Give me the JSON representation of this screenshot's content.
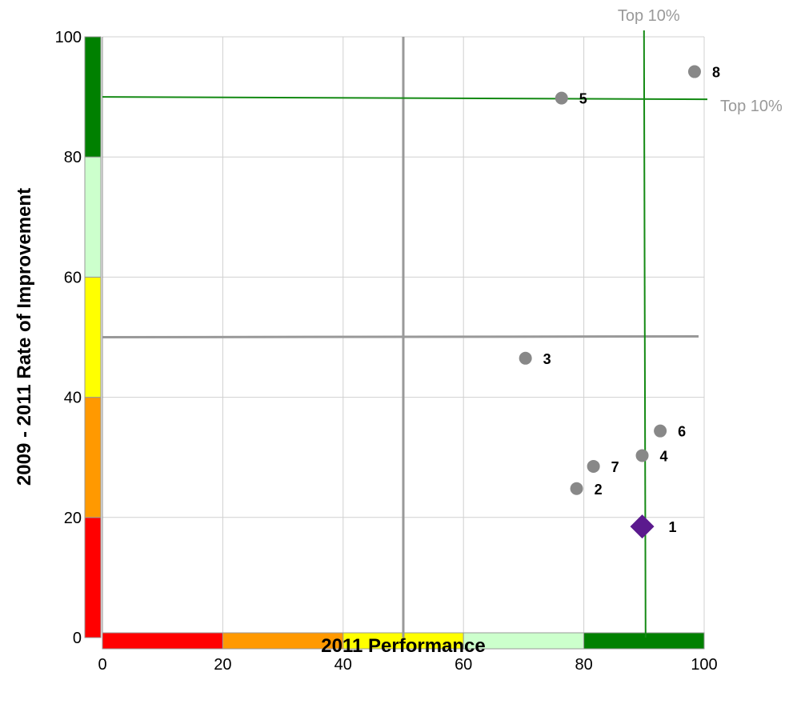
{
  "chart_data": {
    "type": "scatter",
    "xlabel": "2011 Performance",
    "ylabel": "2009 - 2011 Rate of Improvement",
    "xlim": [
      0,
      100
    ],
    "ylim": [
      0,
      100
    ],
    "x_ticks": [
      "0",
      "20",
      "40",
      "60",
      "80",
      "100"
    ],
    "y_ticks": [
      "0",
      "20",
      "40",
      "60",
      "80",
      "100"
    ],
    "grid": true,
    "points": [
      {
        "label": "1",
        "x": 89.7,
        "y": 18.5,
        "marker": "diamond",
        "color": "#5b1a8e"
      },
      {
        "label": "2",
        "x": 78.8,
        "y": 24.8,
        "marker": "circle",
        "color": "#888888"
      },
      {
        "label": "3",
        "x": 70.3,
        "y": 46.5,
        "marker": "circle",
        "color": "#888888"
      },
      {
        "label": "4",
        "x": 89.7,
        "y": 30.3,
        "marker": "circle",
        "color": "#888888"
      },
      {
        "label": "5",
        "x": 76.3,
        "y": 89.8,
        "marker": "circle",
        "color": "#888888"
      },
      {
        "label": "6",
        "x": 92.7,
        "y": 34.4,
        "marker": "circle",
        "color": "#888888"
      },
      {
        "label": "7",
        "x": 81.6,
        "y": 28.5,
        "marker": "circle",
        "color": "#888888"
      },
      {
        "label": "8",
        "x": 98.4,
        "y": 94.2,
        "marker": "circle",
        "color": "#888888"
      }
    ],
    "reference_lines": [
      {
        "orientation": "horizontal",
        "value": 50,
        "color": "#999999"
      },
      {
        "orientation": "vertical",
        "value": 50,
        "color": "#999999"
      },
      {
        "orientation": "horizontal",
        "value": 90,
        "color": "#148a14",
        "label": "Top 10%"
      },
      {
        "orientation": "vertical",
        "value": 90,
        "color": "#148a14",
        "label": "Top 10%"
      }
    ],
    "color_bands": [
      {
        "from": 0,
        "to": 20,
        "color": "#ff0000"
      },
      {
        "from": 20,
        "to": 40,
        "color": "#ff9900"
      },
      {
        "from": 40,
        "to": 60,
        "color": "#ffff00"
      },
      {
        "from": 60,
        "to": 80,
        "color": "#ccffcc"
      },
      {
        "from": 80,
        "to": 100,
        "color": "#008000"
      }
    ],
    "colors": {
      "grid": "#d0d0d0",
      "axis": "#888888",
      "band_border": "#999999"
    }
  }
}
